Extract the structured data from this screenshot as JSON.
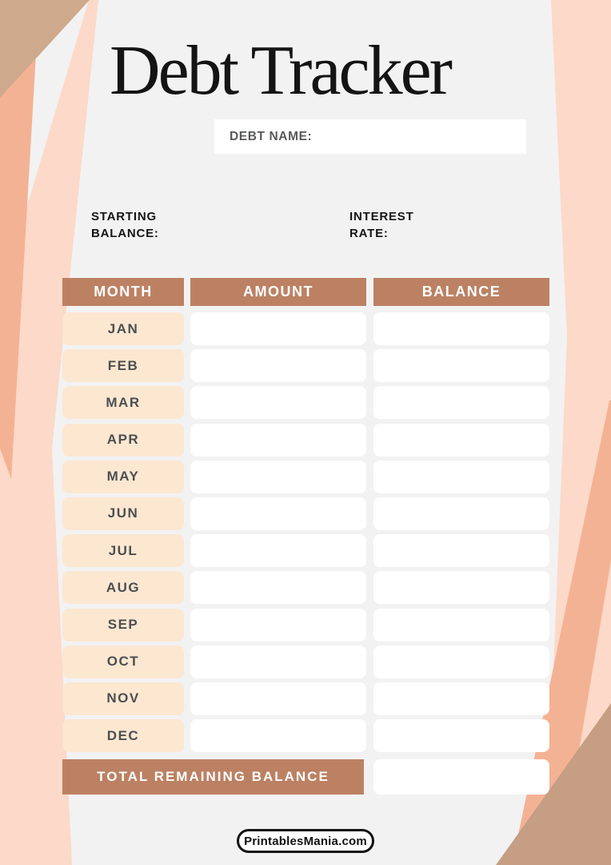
{
  "title": "Debt Tracker",
  "debt_name": {
    "label": "DEBT NAME:",
    "value": ""
  },
  "starting_balance": {
    "line1": "STARTING",
    "line2": "BALANCE:",
    "value": ""
  },
  "interest_rate": {
    "line1": "INTEREST",
    "line2": "RATE:",
    "value": ""
  },
  "table": {
    "headers": [
      "MONTH",
      "AMOUNT",
      "BALANCE"
    ],
    "rows": [
      {
        "month": "JAN",
        "amount": "",
        "balance": ""
      },
      {
        "month": "FEB",
        "amount": "",
        "balance": ""
      },
      {
        "month": "MAR",
        "amount": "",
        "balance": ""
      },
      {
        "month": "APR",
        "amount": "",
        "balance": ""
      },
      {
        "month": "MAY",
        "amount": "",
        "balance": ""
      },
      {
        "month": "JUN",
        "amount": "",
        "balance": ""
      },
      {
        "month": "JUL",
        "amount": "",
        "balance": ""
      },
      {
        "month": "AUG",
        "amount": "",
        "balance": ""
      },
      {
        "month": "SEP",
        "amount": "",
        "balance": ""
      },
      {
        "month": "OCT",
        "amount": "",
        "balance": ""
      },
      {
        "month": "NOV",
        "amount": "",
        "balance": ""
      },
      {
        "month": "DEC",
        "amount": "",
        "balance": ""
      }
    ]
  },
  "total": {
    "label": "TOTAL REMAINING BALANCE",
    "value": ""
  },
  "footer": {
    "brand": "PrintablesMania.com"
  },
  "colors": {
    "bg_gray": "#F2F2F3",
    "pink": "#FCD9C8",
    "salmon": "#F4B294",
    "tan_light": "#CFA98C",
    "tan_dark": "#C59E83",
    "header_brown": "#BC8163",
    "month_peach": "#FCE7D1",
    "month_text": "#4D4E50",
    "label_gray": "#58595B"
  }
}
